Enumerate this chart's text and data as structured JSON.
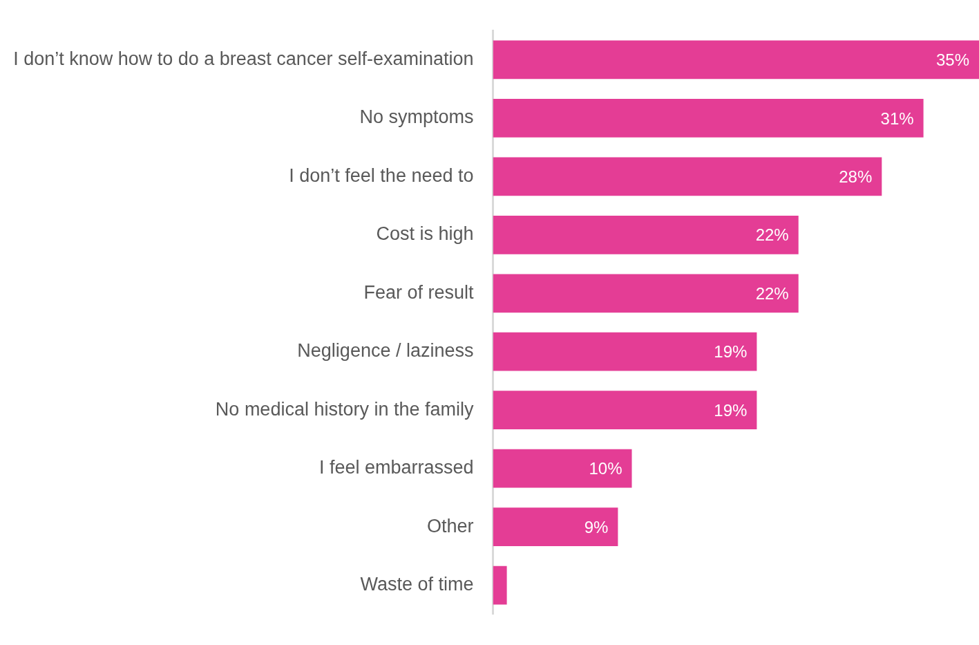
{
  "chart_data": {
    "type": "bar",
    "orientation": "horizontal",
    "categories": [
      "I don’t know how to do a breast cancer self-examination",
      "No symptoms",
      "I don’t feel the need to",
      "Cost is high",
      "Fear of result",
      "Negligence / laziness",
      "No medical history in the family",
      "I feel embarrassed",
      "Other",
      "Waste of time"
    ],
    "values": [
      35,
      31,
      28,
      22,
      22,
      19,
      19,
      10,
      9,
      1
    ],
    "value_labels": [
      "35%",
      "31%",
      "28%",
      "22%",
      "22%",
      "19%",
      "19%",
      "10%",
      "9%",
      null
    ],
    "color": "#e43d95"
  }
}
